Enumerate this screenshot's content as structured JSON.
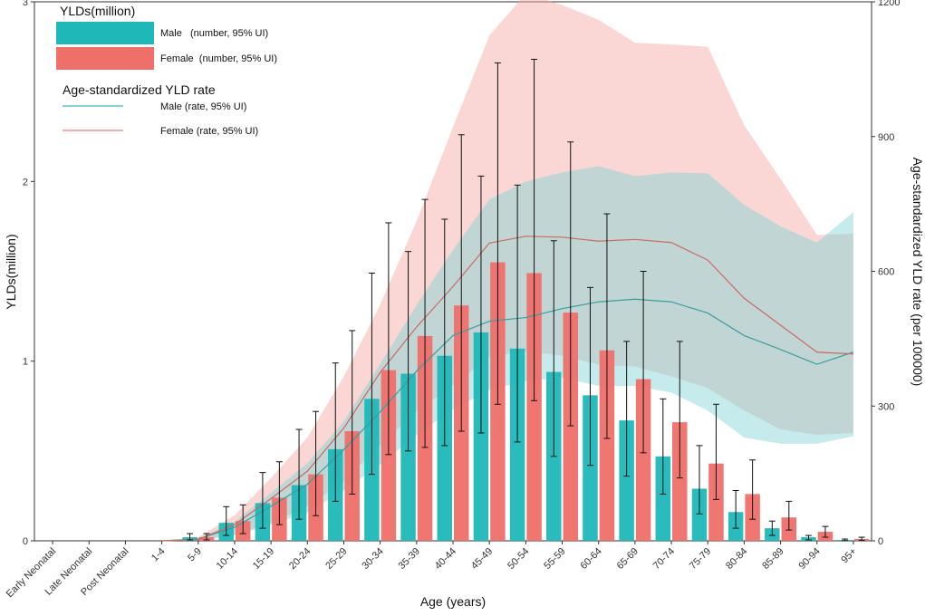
{
  "chart_data": {
    "type": "bar",
    "xlabel": "Age (years)",
    "ylabel": "YLDs(million)",
    "y2label": "Age-standardized YLD rate (per 100000)",
    "ylim": [
      0,
      3
    ],
    "y2lim": [
      0,
      1200
    ],
    "yticks": [
      "0",
      "1",
      "2",
      "3"
    ],
    "y2ticks": [
      "0",
      "300",
      "600",
      "900",
      "1200"
    ],
    "categories": [
      "Early Neonatal",
      "Late Neonatal",
      "Post Neonatal",
      "1-4",
      "5-9",
      "10-14",
      "15-19",
      "20-24",
      "25-29",
      "30-34",
      "35-39",
      "40-44",
      "45-49",
      "50-54",
      "55-59",
      "60-64",
      "65-69",
      "70-74",
      "75-79",
      "80-84",
      "85-89",
      "90-94",
      "95+"
    ],
    "series": [
      {
        "name": "Male",
        "kind": "bar",
        "color": "#1fb8b8",
        "values": [
          0,
          0,
          0,
          0,
          0.02,
          0.1,
          0.21,
          0.31,
          0.51,
          0.79,
          0.93,
          1.03,
          1.16,
          1.07,
          0.94,
          0.81,
          0.67,
          0.47,
          0.29,
          0.16,
          0.07,
          0.02,
          0.005
        ],
        "lower": [
          0,
          0,
          0,
          0,
          0.005,
          0.03,
          0.07,
          0.12,
          0.22,
          0.37,
          0.5,
          0.53,
          0.6,
          0.55,
          0.47,
          0.42,
          0.36,
          0.26,
          0.15,
          0.07,
          0.03,
          0.005,
          0.001
        ],
        "upper": [
          0,
          0,
          0,
          0,
          0.04,
          0.19,
          0.38,
          0.62,
          0.99,
          1.49,
          1.61,
          1.79,
          2.03,
          1.98,
          1.67,
          1.41,
          1.11,
          0.79,
          0.53,
          0.28,
          0.11,
          0.03,
          0.01
        ]
      },
      {
        "name": "Female",
        "kind": "bar",
        "color": "#ef6f6a",
        "values": [
          0,
          0,
          0,
          0,
          0.02,
          0.11,
          0.24,
          0.37,
          0.61,
          0.95,
          1.14,
          1.31,
          1.55,
          1.49,
          1.27,
          1.06,
          0.9,
          0.66,
          0.43,
          0.26,
          0.13,
          0.05,
          0.01
        ],
        "lower": [
          0,
          0,
          0,
          0,
          0.005,
          0.04,
          0.09,
          0.14,
          0.26,
          0.48,
          0.52,
          0.61,
          0.76,
          0.78,
          0.64,
          0.57,
          0.49,
          0.35,
          0.23,
          0.12,
          0.06,
          0.02,
          0.003
        ],
        "upper": [
          0,
          0,
          0,
          0,
          0.04,
          0.2,
          0.44,
          0.72,
          1.17,
          1.77,
          1.9,
          2.26,
          2.66,
          2.68,
          2.22,
          1.82,
          1.5,
          1.11,
          0.76,
          0.45,
          0.22,
          0.08,
          0.02
        ]
      },
      {
        "name": "Male rate",
        "kind": "line",
        "axis": "right",
        "color": "#3a9e9e",
        "band_color": "#7fd3d6",
        "values": [
          0,
          0,
          0,
          0,
          4,
          30,
          77,
          126,
          203,
          287,
          378,
          457,
          489,
          497,
          517,
          532,
          538,
          532,
          507,
          457,
          426,
          393,
          420
        ],
        "lower": [
          0,
          0,
          0,
          0,
          1,
          12,
          36,
          63,
          112,
          170,
          236,
          292,
          336,
          356,
          363,
          345,
          345,
          330,
          290,
          230,
          216,
          216,
          233
        ],
        "upper": [
          0,
          0,
          0,
          0,
          6,
          42,
          107,
          173,
          266,
          394,
          525,
          648,
          760,
          800,
          820,
          834,
          812,
          820,
          818,
          748,
          700,
          664,
          732
        ]
      },
      {
        "name": "Female rate",
        "kind": "line",
        "axis": "right",
        "color": "#c96a64",
        "band_color": "#f4a6a0",
        "values": [
          0,
          0,
          0,
          0,
          3,
          36,
          94,
          155,
          251,
          375,
          476,
          566,
          663,
          678,
          676,
          667,
          671,
          664,
          625,
          540,
          480,
          420,
          416
        ],
        "lower": [
          0,
          0,
          0,
          0,
          1,
          14,
          40,
          76,
          132,
          213,
          288,
          346,
          410,
          422,
          412,
          392,
          388,
          366,
          340,
          290,
          248,
          236,
          240
        ],
        "upper": [
          0,
          0,
          0,
          0,
          8,
          57,
          140,
          230,
          366,
          526,
          712,
          921,
          1125,
          1218,
          1193,
          1160,
          1109,
          1105,
          1100,
          925,
          806,
          681,
          684
        ]
      }
    ],
    "legend": {
      "bars_title": "YLDs(million)",
      "bars": [
        {
          "label": "Male   (number, 95% UI)",
          "color": "#1fb8b8"
        },
        {
          "label": "Female  (number, 95% UI)",
          "color": "#ef6f6a"
        }
      ],
      "lines_title": "Age-standardized YLD rate",
      "lines": [
        {
          "label": "Male (rate, 95% UI)",
          "color": "#3fb3b6"
        },
        {
          "label": "Female (rate, 95% UI)",
          "color": "#e87f79"
        }
      ],
      "position": "top-left"
    }
  }
}
